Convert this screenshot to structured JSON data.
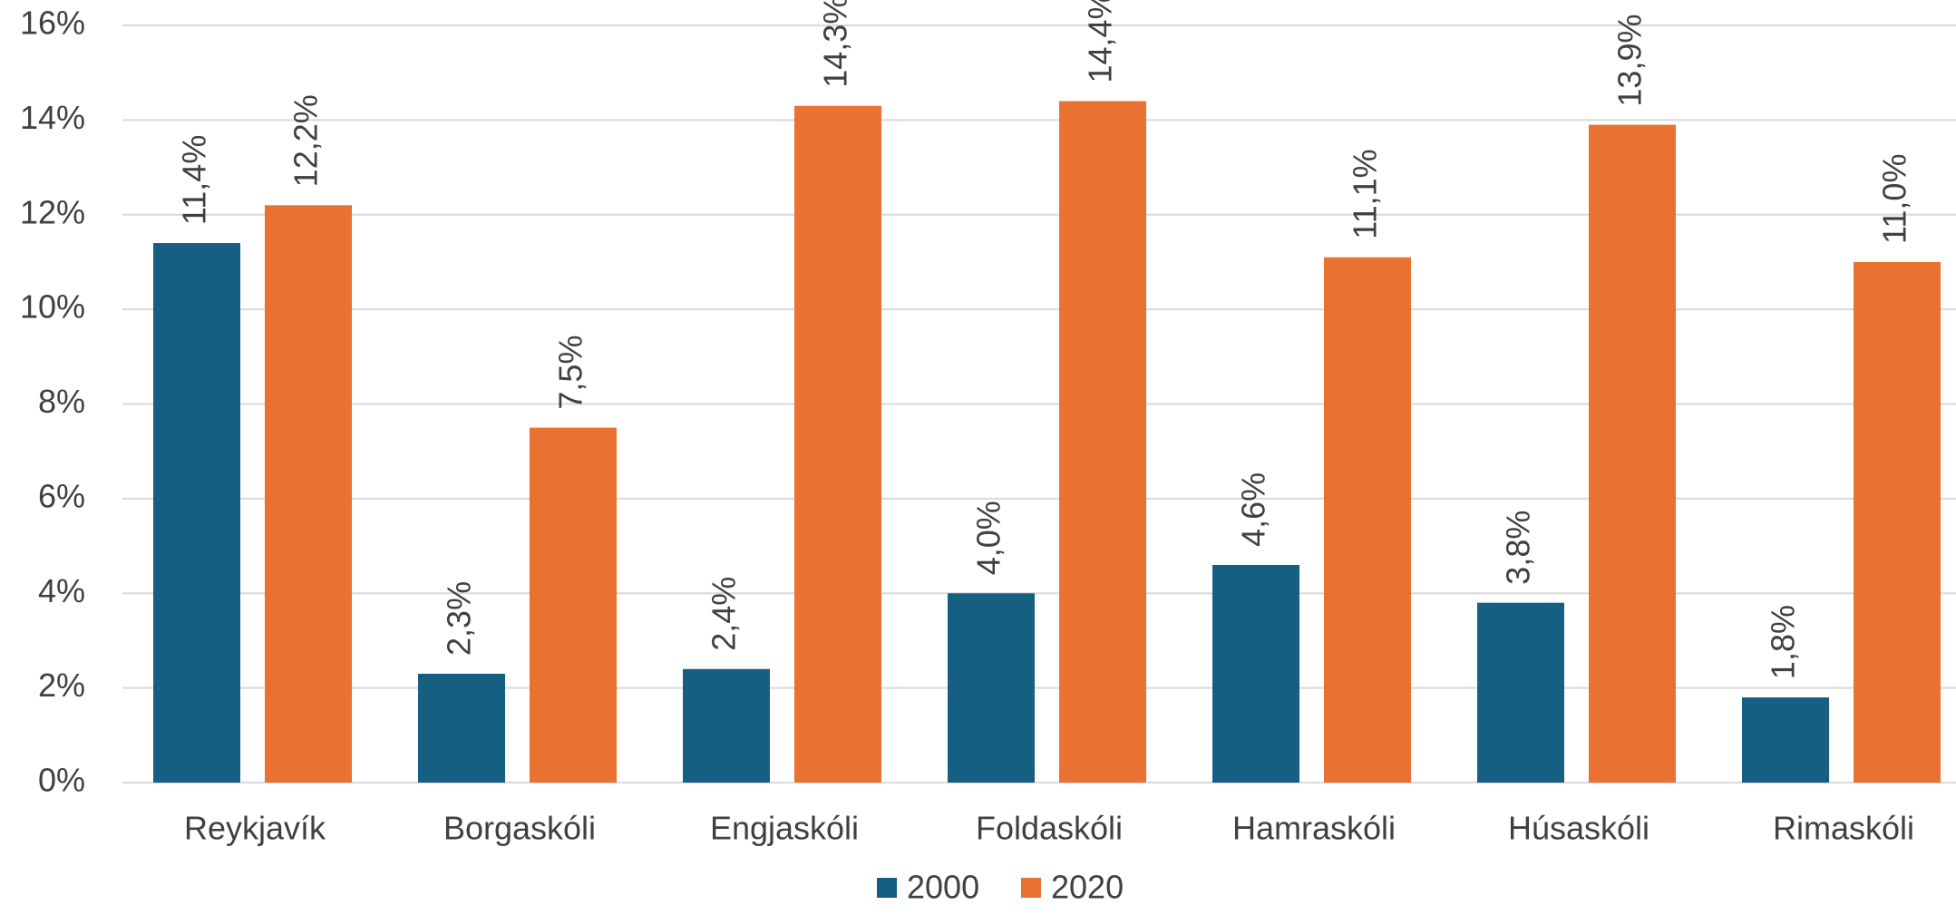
{
  "chart_data": {
    "type": "bar",
    "categories": [
      "Reykjavík",
      "Borgaskóli",
      "Engjaskóli",
      "Foldaskóli",
      "Hamraskóli",
      "Húsaskóli",
      "Rimaskóli"
    ],
    "series": [
      {
        "name": "2000",
        "color": "#156082",
        "values": [
          11.4,
          2.3,
          2.4,
          4.0,
          4.6,
          3.8,
          1.8
        ],
        "value_labels": [
          "11,4%",
          "2,3%",
          "2,4%",
          "4,0%",
          "4,6%",
          "3,8%",
          "1,8%"
        ]
      },
      {
        "name": "2020",
        "color": "#E97132",
        "values": [
          12.2,
          7.5,
          14.3,
          14.4,
          11.1,
          13.9,
          11.0
        ],
        "value_labels": [
          "12,2%",
          "7,5%",
          "14,3%",
          "14,4%",
          "11,1%",
          "13,9%",
          "11,0%"
        ]
      }
    ],
    "ylim": [
      0,
      16
    ],
    "yticks": [
      {
        "value": 0,
        "label": "0%"
      },
      {
        "value": 2,
        "label": "2%"
      },
      {
        "value": 4,
        "label": "4%"
      },
      {
        "value": 6,
        "label": "6%"
      },
      {
        "value": 8,
        "label": "8%"
      },
      {
        "value": 10,
        "label": "10%"
      },
      {
        "value": 12,
        "label": "12%"
      },
      {
        "value": 14,
        "label": "14%"
      },
      {
        "value": 16,
        "label": "16%"
      }
    ],
    "grid": true,
    "legend": "bottom"
  }
}
